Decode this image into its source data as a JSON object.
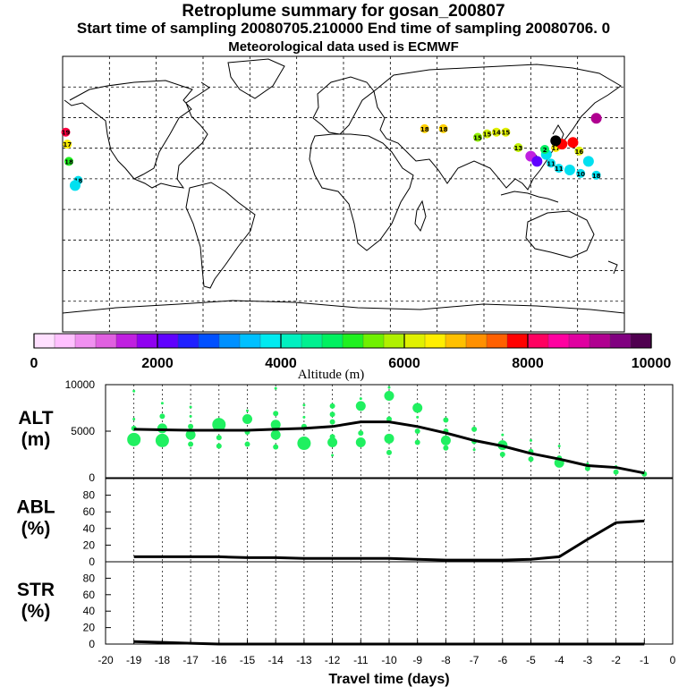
{
  "header": {
    "title": "Retroplume summary for gosan_200807",
    "sampling": "Start time of sampling 20080705.210000     End time of sampling 20080706.     0",
    "met_note": "Meteorological data used is ECMWF"
  },
  "colorbar": {
    "label": "Altitude (m)",
    "ticks": [
      "0",
      "2000",
      "4000",
      "6000",
      "8000",
      "10000"
    ],
    "colors": [
      "#ffe0ff",
      "#ffc0ff",
      "#f090f0",
      "#e060e0",
      "#c020e0",
      "#9000f0",
      "#6000ff",
      "#2020ff",
      "#0050ff",
      "#0090ff",
      "#00c0ff",
      "#00eaf0",
      "#00f0c0",
      "#00f090",
      "#00f060",
      "#20f020",
      "#70f000",
      "#b0f000",
      "#e0f000",
      "#ffee00",
      "#ffc000",
      "#ff9000",
      "#ff6000",
      "#ff0000",
      "#ff0060",
      "#ff00a0",
      "#e000a0",
      "#b00090",
      "#800080",
      "#500050"
    ]
  },
  "chart_data": [
    {
      "type": "scatter+line",
      "panel": "ALT",
      "ylabel": "ALT\n(m)",
      "ylabel_lines": [
        "ALT",
        "(m)"
      ],
      "ylim": [
        0,
        10000
      ],
      "yticks": [
        "0",
        "5000",
        "10000"
      ],
      "xlim": [
        -20,
        0
      ],
      "line": {
        "x": [
          -19,
          -18,
          -17,
          -16,
          -15,
          -14,
          -13,
          -12,
          -11,
          -10,
          -9,
          -8,
          -7,
          -6,
          -5,
          -4,
          -3,
          -2,
          -1
        ],
        "y": [
          5200,
          5150,
          5100,
          5100,
          5100,
          5200,
          5300,
          5500,
          6000,
          6000,
          5500,
          4800,
          4000,
          3400,
          2600,
          2000,
          1300,
          1100,
          500
        ]
      },
      "points": [
        {
          "x": -19,
          "y": 4100,
          "s": 3
        },
        {
          "x": -19,
          "y": 5300,
          "s": 1
        },
        {
          "x": -19,
          "y": 6300,
          "s": 0
        },
        {
          "x": -19,
          "y": 9300,
          "s": 0
        },
        {
          "x": -18,
          "y": 4000,
          "s": 3
        },
        {
          "x": -18,
          "y": 5300,
          "s": 2
        },
        {
          "x": -18,
          "y": 6600,
          "s": 1
        },
        {
          "x": -18,
          "y": 8000,
          "s": 0
        },
        {
          "x": -17,
          "y": 3600,
          "s": 1
        },
        {
          "x": -17,
          "y": 4600,
          "s": 2
        },
        {
          "x": -17,
          "y": 5500,
          "s": 1
        },
        {
          "x": -17,
          "y": 6600,
          "s": 0
        },
        {
          "x": -17,
          "y": 7600,
          "s": 0
        },
        {
          "x": -16,
          "y": 3400,
          "s": 1
        },
        {
          "x": -16,
          "y": 4300,
          "s": 1
        },
        {
          "x": -16,
          "y": 5700,
          "s": 3
        },
        {
          "x": -16,
          "y": 6300,
          "s": 0
        },
        {
          "x": -15,
          "y": 3600,
          "s": 1
        },
        {
          "x": -15,
          "y": 4900,
          "s": 1
        },
        {
          "x": -15,
          "y": 6300,
          "s": 2
        },
        {
          "x": -15,
          "y": 7200,
          "s": 0
        },
        {
          "x": -14,
          "y": 3300,
          "s": 1
        },
        {
          "x": -14,
          "y": 4600,
          "s": 2
        },
        {
          "x": -14,
          "y": 5700,
          "s": 2
        },
        {
          "x": -14,
          "y": 6900,
          "s": 1
        },
        {
          "x": -14,
          "y": 9600,
          "s": 0
        },
        {
          "x": -13,
          "y": 3700,
          "s": 3
        },
        {
          "x": -13,
          "y": 5500,
          "s": 1
        },
        {
          "x": -13,
          "y": 6500,
          "s": 0
        },
        {
          "x": -13,
          "y": 7800,
          "s": 0
        },
        {
          "x": -12,
          "y": 2400,
          "s": 0
        },
        {
          "x": -12,
          "y": 3800,
          "s": 2
        },
        {
          "x": -12,
          "y": 4400,
          "s": 1
        },
        {
          "x": -12,
          "y": 6000,
          "s": 1
        },
        {
          "x": -12,
          "y": 6800,
          "s": 1
        },
        {
          "x": -12,
          "y": 7700,
          "s": 1
        },
        {
          "x": -11,
          "y": 3800,
          "s": 2
        },
        {
          "x": -11,
          "y": 4800,
          "s": 1
        },
        {
          "x": -11,
          "y": 7700,
          "s": 2
        },
        {
          "x": -11,
          "y": 8500,
          "s": 0
        },
        {
          "x": -10,
          "y": 2700,
          "s": 1
        },
        {
          "x": -10,
          "y": 4200,
          "s": 2
        },
        {
          "x": -10,
          "y": 6300,
          "s": 1
        },
        {
          "x": -10,
          "y": 8800,
          "s": 2
        },
        {
          "x": -10,
          "y": 9700,
          "s": 0
        },
        {
          "x": -9,
          "y": 3800,
          "s": 1
        },
        {
          "x": -9,
          "y": 5000,
          "s": 1
        },
        {
          "x": -9,
          "y": 6500,
          "s": 0
        },
        {
          "x": -9,
          "y": 7500,
          "s": 2
        },
        {
          "x": -8,
          "y": 3200,
          "s": 1
        },
        {
          "x": -8,
          "y": 4000,
          "s": 2
        },
        {
          "x": -8,
          "y": 5000,
          "s": 1
        },
        {
          "x": -8,
          "y": 6200,
          "s": 1
        },
        {
          "x": -7,
          "y": 3000,
          "s": 0
        },
        {
          "x": -7,
          "y": 3900,
          "s": 1
        },
        {
          "x": -7,
          "y": 5200,
          "s": 1
        },
        {
          "x": -6,
          "y": 2500,
          "s": 1
        },
        {
          "x": -6,
          "y": 3500,
          "s": 2
        },
        {
          "x": -6,
          "y": 4600,
          "s": 0
        },
        {
          "x": -5,
          "y": 2000,
          "s": 1
        },
        {
          "x": -5,
          "y": 2800,
          "s": 1
        },
        {
          "x": -5,
          "y": 4000,
          "s": 0
        },
        {
          "x": -4,
          "y": 1600,
          "s": 2
        },
        {
          "x": -4,
          "y": 2100,
          "s": 1
        },
        {
          "x": -4,
          "y": 3400,
          "s": 0
        },
        {
          "x": -3,
          "y": 1000,
          "s": 1
        },
        {
          "x": -3,
          "y": 1500,
          "s": 0
        },
        {
          "x": -2,
          "y": 600,
          "s": 1
        },
        {
          "x": -2,
          "y": 1200,
          "s": 0
        },
        {
          "x": -1,
          "y": 400,
          "s": 1
        }
      ]
    },
    {
      "type": "line",
      "panel": "ABL",
      "ylabel": "ABL\n(%)",
      "ylabel_lines": [
        "ABL",
        "(%)"
      ],
      "ylim": [
        0,
        100
      ],
      "yticks": [
        "0",
        "20",
        "40",
        "60",
        "80"
      ],
      "xlim": [
        -20,
        0
      ],
      "line": {
        "x": [
          -19,
          -18,
          -17,
          -16,
          -15,
          -14,
          -13,
          -12,
          -11,
          -10,
          -9,
          -8,
          -7,
          -6,
          -5,
          -4,
          -3,
          -2,
          -1
        ],
        "y": [
          6,
          6,
          6,
          6,
          5,
          5,
          4,
          4,
          4,
          4,
          3,
          2,
          2,
          2,
          3,
          6,
          27,
          47,
          49
        ]
      }
    },
    {
      "type": "line",
      "panel": "STR",
      "ylabel": "STR\n(%)",
      "ylabel_lines": [
        "STR",
        "(%)"
      ],
      "ylim": [
        0,
        100
      ],
      "yticks": [
        "0",
        "20",
        "40",
        "60",
        "80"
      ],
      "xlim": [
        -20,
        0
      ],
      "xticks": [
        "-20",
        "-19",
        "-18",
        "-17",
        "-16",
        "-15",
        "-14",
        "-13",
        "-12",
        "-11",
        "-10",
        "-9",
        "-8",
        "-7",
        "-6",
        "-5",
        "-4",
        "-3",
        "-2",
        "-1",
        "0"
      ],
      "xlabel": "Travel time (days)",
      "line": {
        "x": [
          -19,
          -18,
          -17,
          -16,
          -15,
          -14,
          -13,
          -12,
          -11,
          -10,
          -9,
          -8,
          -7,
          -6,
          -5,
          -4,
          -3,
          -2,
          -1
        ],
        "y": [
          3,
          2,
          1,
          0,
          0,
          0,
          0,
          0,
          0,
          0,
          0,
          0,
          0,
          0,
          0,
          0,
          0,
          0,
          0
        ]
      }
    }
  ],
  "map_plumes": [
    {
      "lon": -178,
      "lat": 36,
      "label": "19",
      "color": "#ff0040"
    },
    {
      "lon": -177,
      "lat": 29,
      "label": "17",
      "color": "#ffee00"
    },
    {
      "lon": -176,
      "lat": 19,
      "label": "18",
      "color": "#20f020"
    },
    {
      "lon": -170,
      "lat": 8,
      "label": "18",
      "color": "#00e0f0"
    },
    {
      "lon": -172,
      "lat": 5,
      "label": "",
      "color": "#00e0f0"
    },
    {
      "lon": 52,
      "lat": 38,
      "label": "18",
      "color": "#ffd000"
    },
    {
      "lon": 64,
      "lat": 38,
      "label": "18",
      "color": "#ffd000"
    },
    {
      "lon": 86,
      "lat": 33,
      "label": "15",
      "color": "#90f000"
    },
    {
      "lon": 92,
      "lat": 35,
      "label": "15",
      "color": "#d0f000"
    },
    {
      "lon": 98,
      "lat": 36,
      "label": "14",
      "color": "#e0f000"
    },
    {
      "lon": 104,
      "lat": 36,
      "label": "15",
      "color": "#e0f000"
    },
    {
      "lon": 112,
      "lat": 27,
      "label": "13",
      "color": "#c0f000"
    },
    {
      "lon": 120,
      "lat": 22,
      "label": "",
      "color": "#c020e0"
    },
    {
      "lon": 124,
      "lat": 19,
      "label": "",
      "color": "#6000ff"
    },
    {
      "lon": 130,
      "lat": 23,
      "label": "",
      "color": "#00e0f0"
    },
    {
      "lon": 133,
      "lat": 18,
      "label": "11",
      "color": "#00e0f0"
    },
    {
      "lon": 138,
      "lat": 15,
      "label": "11",
      "color": "#00e0f0"
    },
    {
      "lon": 145,
      "lat": 14,
      "label": "",
      "color": "#00e0f0"
    },
    {
      "lon": 152,
      "lat": 12,
      "label": "10",
      "color": "#00e0f0"
    },
    {
      "lon": 129,
      "lat": 26,
      "label": "2",
      "color": "#00f060"
    },
    {
      "lon": 136,
      "lat": 27,
      "label": "17",
      "color": "#ffee00"
    },
    {
      "lon": 140,
      "lat": 29,
      "label": "",
      "color": "#ff0000"
    },
    {
      "lon": 147,
      "lat": 30,
      "label": "",
      "color": "#ff0000"
    },
    {
      "lon": 151,
      "lat": 25,
      "label": "16",
      "color": "#e0f000"
    },
    {
      "lon": 157,
      "lat": 19,
      "label": "",
      "color": "#00e0f0"
    },
    {
      "lon": 162,
      "lat": 11,
      "label": "18",
      "color": "#00e0f0"
    },
    {
      "lon": 162,
      "lat": 44,
      "label": "",
      "color": "#b00090"
    },
    {
      "lon": 136,
      "lat": 31,
      "label": "",
      "color": "#000000"
    }
  ]
}
